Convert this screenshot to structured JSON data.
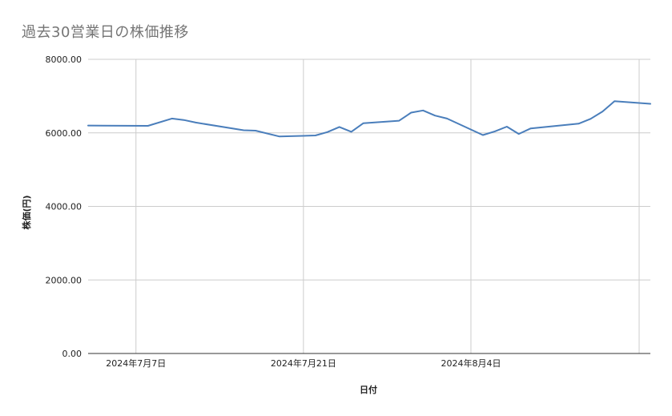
{
  "chart_data": {
    "type": "line",
    "title": "過去30営業日の株価推移",
    "xlabel": "日付",
    "ylabel": "株価(円)",
    "ylim": [
      0,
      8000
    ],
    "yticks": [
      "0.00",
      "2000.00",
      "4000.00",
      "6000.00",
      "8000.00"
    ],
    "yticks_values": [
      0,
      2000,
      4000,
      6000,
      8000
    ],
    "xticks": [
      {
        "label": "2024年7月7日",
        "date": "2024-07-07"
      },
      {
        "label": "2024年7月21日",
        "date": "2024-07-21"
      },
      {
        "label": "2024年8月4日",
        "date": "2024-08-04"
      }
    ],
    "xlim": [
      "2024-07-03",
      "2024-08-19"
    ],
    "grid": true,
    "series": [
      {
        "color": "#4a7ebb",
        "points": [
          {
            "x": "2024-07-03",
            "y": 6200
          },
          {
            "x": "2024-07-08",
            "y": 6190
          },
          {
            "x": "2024-07-10",
            "y": 6390
          },
          {
            "x": "2024-07-11",
            "y": 6350
          },
          {
            "x": "2024-07-12",
            "y": 6280
          },
          {
            "x": "2024-07-16",
            "y": 6070
          },
          {
            "x": "2024-07-17",
            "y": 6060
          },
          {
            "x": "2024-07-19",
            "y": 5900
          },
          {
            "x": "2024-07-22",
            "y": 5930
          },
          {
            "x": "2024-07-23",
            "y": 6020
          },
          {
            "x": "2024-07-24",
            "y": 6160
          },
          {
            "x": "2024-07-25",
            "y": 6030
          },
          {
            "x": "2024-07-26",
            "y": 6260
          },
          {
            "x": "2024-07-29",
            "y": 6330
          },
          {
            "x": "2024-07-30",
            "y": 6550
          },
          {
            "x": "2024-07-31",
            "y": 6610
          },
          {
            "x": "2024-08-01",
            "y": 6470
          },
          {
            "x": "2024-08-02",
            "y": 6390
          },
          {
            "x": "2024-08-05",
            "y": 5940
          },
          {
            "x": "2024-08-06",
            "y": 6040
          },
          {
            "x": "2024-08-07",
            "y": 6170
          },
          {
            "x": "2024-08-08",
            "y": 5970
          },
          {
            "x": "2024-08-09",
            "y": 6120
          },
          {
            "x": "2024-08-13",
            "y": 6250
          },
          {
            "x": "2024-08-14",
            "y": 6380
          },
          {
            "x": "2024-08-15",
            "y": 6580
          },
          {
            "x": "2024-08-16",
            "y": 6860
          },
          {
            "x": "2024-08-19",
            "y": 6790
          }
        ]
      }
    ]
  },
  "colors": {
    "line": "#4a7ebb",
    "grid": "#cccccc",
    "axis": "#333333",
    "title": "#757575"
  }
}
